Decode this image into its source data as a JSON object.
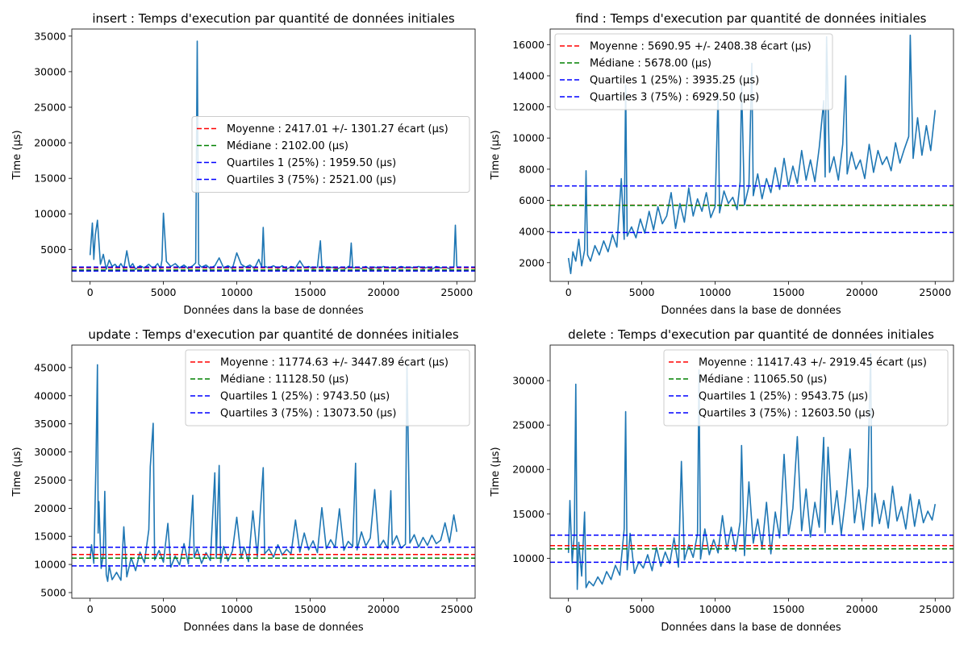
{
  "chart_data": [
    {
      "type": "line",
      "title": "insert : Temps d'execution par quantité de données initiales",
      "xlabel": "Données dans la base de données",
      "ylabel": "Time (µs)",
      "xlim": [
        -1250,
        26250
      ],
      "ylim": [
        500,
        36000
      ],
      "xticks": [
        0,
        5000,
        10000,
        15000,
        20000,
        25000
      ],
      "yticks": [
        5000,
        10000,
        15000,
        20000,
        25000,
        30000,
        35000
      ],
      "grid": false,
      "legend_position": "center-right",
      "series_color": "#1f77b4",
      "series": [
        {
          "x": [
            0,
            150,
            250,
            350,
            500,
            700,
            900,
            1100,
            1300,
            1500,
            1700,
            1900,
            2100,
            2300,
            2500,
            2700,
            2900,
            3100,
            3400,
            3700,
            4000,
            4300,
            4600,
            4800,
            4900,
            5000,
            5200,
            5500,
            5800,
            6100,
            6400,
            6700,
            7000,
            7200,
            7300,
            7400,
            7600,
            7900,
            8200,
            8500,
            8800,
            9100,
            9400,
            9700,
            10000,
            10300,
            10600,
            10900,
            11200,
            11500,
            11700,
            11800,
            11900,
            12200,
            12500,
            12800,
            13100,
            13400,
            13700,
            14000,
            14300,
            14600,
            14900,
            15200,
            15500,
            15700,
            15800,
            15900,
            16200,
            16500,
            16800,
            17100,
            17400,
            17700,
            17800,
            17900,
            18200,
            18500,
            18800,
            19100,
            19400,
            19700,
            20000,
            20300,
            20600,
            20900,
            21200,
            21500,
            21800,
            22100,
            22400,
            22700,
            23000,
            23300,
            23600,
            23900,
            24200,
            24500,
            24800,
            24900,
            25000
          ],
          "y": [
            4200,
            8700,
            3600,
            7000,
            9100,
            2900,
            4300,
            2200,
            3500,
            2600,
            2900,
            2400,
            3000,
            2300,
            4800,
            2500,
            3000,
            2200,
            2700,
            2400,
            2900,
            2300,
            3000,
            2300,
            3500,
            10100,
            3300,
            2600,
            3000,
            2400,
            2800,
            2300,
            2700,
            3100,
            34300,
            2900,
            2500,
            2800,
            2300,
            2700,
            3800,
            2400,
            2700,
            2300,
            4500,
            2900,
            2500,
            2800,
            2300,
            3600,
            2500,
            8100,
            2600,
            2400,
            2700,
            2300,
            2700,
            2200,
            2600,
            2400,
            3400,
            2400,
            2600,
            2300,
            2500,
            6200,
            2400,
            2600,
            2300,
            2500,
            2200,
            2500,
            2300,
            2700,
            5900,
            2400,
            2500,
            2300,
            2600,
            2200,
            2500,
            2300,
            2600,
            2400,
            2500,
            2300,
            2600,
            2400,
            2500,
            2400,
            2600,
            2300,
            2500,
            2200,
            2600,
            2400,
            2500,
            2300,
            2500,
            8400,
            2600
          ]
        }
      ],
      "legend": [
        {
          "label": "Moyenne : 2417.01 +/- 1301.27 écart (µs)",
          "value": 2417.01,
          "color": "#ff0000"
        },
        {
          "label": "Médiane : 2102.00 (µs)",
          "value": 2102.0,
          "color": "#008000"
        },
        {
          "label": "Quartiles 1 (25%) : 1959.50 (µs)",
          "value": 1959.5,
          "color": "#0000ff"
        },
        {
          "label": "Quartiles 3 (75%) : 2521.00 (µs)",
          "value": 2521.0,
          "color": "#0000ff"
        }
      ]
    },
    {
      "type": "line",
      "title": "find : Temps d'execution par quantité de données initiales",
      "xlabel": "Données dans la base de données",
      "ylabel": "Time (µs)",
      "xlim": [
        -1250,
        26250
      ],
      "ylim": [
        800,
        17000
      ],
      "xticks": [
        0,
        5000,
        10000,
        15000,
        20000,
        25000
      ],
      "yticks": [
        2000,
        4000,
        6000,
        8000,
        10000,
        12000,
        14000,
        16000
      ],
      "grid": false,
      "legend_position": "top-left",
      "series_color": "#1f77b4",
      "series": [
        {
          "x": [
            0,
            150,
            300,
            500,
            700,
            900,
            1100,
            1200,
            1300,
            1500,
            1800,
            2100,
            2400,
            2700,
            3000,
            3300,
            3600,
            3800,
            3900,
            4000,
            4300,
            4600,
            4900,
            5200,
            5500,
            5800,
            6100,
            6400,
            6700,
            7000,
            7300,
            7600,
            7900,
            8200,
            8500,
            8800,
            9100,
            9400,
            9700,
            10000,
            10200,
            10300,
            10600,
            10900,
            11200,
            11500,
            11700,
            11800,
            12000,
            12300,
            12500,
            12600,
            12900,
            13200,
            13500,
            13800,
            14100,
            14400,
            14700,
            15000,
            15300,
            15600,
            15900,
            16200,
            16500,
            16800,
            17100,
            17400,
            17500,
            17600,
            17800,
            18100,
            18400,
            18700,
            18900,
            19000,
            19300,
            19600,
            19900,
            20200,
            20500,
            20800,
            21100,
            21400,
            21700,
            22000,
            22300,
            22600,
            22900,
            23200,
            23300,
            23500,
            23800,
            24100,
            24400,
            24700,
            25000
          ],
          "y": [
            2300,
            1300,
            2700,
            2100,
            3500,
            1800,
            2800,
            7900,
            2500,
            2100,
            3100,
            2500,
            3400,
            2700,
            3800,
            3000,
            7400,
            3500,
            13400,
            3700,
            4300,
            3600,
            4800,
            3900,
            5300,
            4100,
            5600,
            4500,
            5000,
            6500,
            4200,
            5800,
            4600,
            6800,
            5000,
            6100,
            5300,
            6500,
            4900,
            5600,
            12900,
            5200,
            6600,
            5800,
            6200,
            5400,
            7200,
            13500,
            5700,
            6900,
            14800,
            6300,
            7700,
            6100,
            7400,
            6500,
            8100,
            6700,
            8700,
            6900,
            8200,
            7100,
            9200,
            7300,
            8600,
            7200,
            9400,
            12400,
            7500,
            16500,
            7800,
            8800,
            7300,
            9600,
            14000,
            7700,
            9100,
            8000,
            8600,
            7400,
            9600,
            7800,
            9200,
            8300,
            8800,
            7900,
            9700,
            8400,
            9300,
            10100,
            16600,
            8700,
            11300,
            8900,
            10800,
            9200,
            11800
          ]
        }
      ],
      "legend": [
        {
          "label": "Moyenne : 5690.95 +/- 2408.38 écart (µs)",
          "value": 5690.95,
          "color": "#ff0000"
        },
        {
          "label": "Médiane : 5678.00 (µs)",
          "value": 5678.0,
          "color": "#008000"
        },
        {
          "label": "Quartiles 1 (25%) : 3935.25 (µs)",
          "value": 3935.25,
          "color": "#0000ff"
        },
        {
          "label": "Quartiles 3 (75%) : 6929.50 (µs)",
          "value": 6929.5,
          "color": "#0000ff"
        }
      ]
    },
    {
      "type": "line",
      "title": "update : Temps d'execution par quantité de données initiales",
      "xlabel": "Données dans la base de données",
      "ylabel": "Time (µs)",
      "xlim": [
        -1250,
        26250
      ],
      "ylim": [
        4000,
        49000
      ],
      "xticks": [
        0,
        5000,
        10000,
        15000,
        20000,
        25000
      ],
      "yticks": [
        5000,
        10000,
        15000,
        20000,
        25000,
        30000,
        35000,
        40000,
        45000
      ],
      "grid": false,
      "legend_position": "top-right",
      "series_color": "#1f77b4",
      "series": [
        {
          "x": [
            0,
            100,
            250,
            400,
            500,
            550,
            600,
            750,
            900,
            1000,
            1100,
            1200,
            1300,
            1500,
            1800,
            2100,
            2300,
            2500,
            2800,
            3100,
            3400,
            3700,
            4000,
            4100,
            4300,
            4400,
            4700,
            5000,
            5300,
            5500,
            5800,
            6100,
            6400,
            6700,
            7000,
            7100,
            7300,
            7600,
            7900,
            8200,
            8500,
            8600,
            8800,
            8900,
            9100,
            9400,
            9700,
            10000,
            10300,
            10500,
            10800,
            11100,
            11400,
            11800,
            11900,
            12200,
            12500,
            12800,
            13100,
            13400,
            13700,
            14000,
            14300,
            14600,
            14900,
            15200,
            15500,
            15800,
            16100,
            16400,
            16700,
            17000,
            17300,
            17600,
            17900,
            18100,
            18200,
            18500,
            18800,
            19100,
            19400,
            19700,
            20000,
            20300,
            20500,
            20600,
            20900,
            21200,
            21500,
            21600,
            21800,
            22100,
            22400,
            22700,
            23000,
            23300,
            23600,
            23900,
            24200,
            24500,
            24800,
            25000
          ],
          "y": [
            11000,
            13500,
            10200,
            28300,
            45500,
            15600,
            21200,
            9300,
            11800,
            23000,
            8200,
            7000,
            9800,
            7300,
            8600,
            7200,
            16700,
            7800,
            11200,
            8900,
            12200,
            10300,
            16200,
            27400,
            35100,
            10800,
            12500,
            10400,
            17300,
            9500,
            11500,
            9900,
            13700,
            10100,
            22300,
            11200,
            12800,
            10200,
            12100,
            10700,
            26300,
            11100,
            27600,
            10300,
            13200,
            10600,
            12400,
            18400,
            11200,
            13100,
            10500,
            19500,
            11400,
            27200,
            11900,
            12800,
            11300,
            13500,
            11700,
            12700,
            11900,
            17900,
            12200,
            15600,
            12600,
            14200,
            12100,
            20100,
            12800,
            14400,
            13000,
            19900,
            12500,
            14100,
            13200,
            28000,
            12600,
            15800,
            13300,
            14700,
            23300,
            13000,
            14300,
            12800,
            23100,
            13500,
            15100,
            12900,
            13600,
            45500,
            13800,
            15300,
            13100,
            14800,
            13400,
            15200,
            13700,
            14300,
            17400,
            13900,
            18800,
            15800
          ]
        }
      ],
      "legend": [
        {
          "label": "Moyenne : 11774.63 +/- 3447.89 écart (µs)",
          "value": 11774.63,
          "color": "#ff0000"
        },
        {
          "label": "Médiane : 11128.50 (µs)",
          "value": 11128.5,
          "color": "#008000"
        },
        {
          "label": "Quartiles 1 (25%) : 9743.50 (µs)",
          "value": 9743.5,
          "color": "#0000ff"
        },
        {
          "label": "Quartiles 3 (75%) : 13073.50 (µs)",
          "value": 13073.5,
          "color": "#0000ff"
        }
      ]
    },
    {
      "type": "line",
      "title": "delete : Temps d'execution par quantité de données initiales",
      "xlabel": "Données dans la base de données",
      "ylabel": "Time (µs)",
      "xlim": [
        -1250,
        26250
      ],
      "ylim": [
        5500,
        34000
      ],
      "xticks": [
        0,
        5000,
        10000,
        15000,
        20000,
        25000
      ],
      "yticks": [
        10000,
        15000,
        20000,
        25000,
        30000
      ],
      "grid": false,
      "legend_position": "top-right",
      "series_color": "#1f77b4",
      "series": [
        {
          "x": [
            0,
            100,
            250,
            400,
            500,
            600,
            700,
            900,
            1100,
            1200,
            1400,
            1700,
            2000,
            2300,
            2600,
            2900,
            3200,
            3500,
            3800,
            3900,
            4000,
            4200,
            4500,
            4800,
            5100,
            5400,
            5700,
            6000,
            6300,
            6600,
            6900,
            7200,
            7500,
            7700,
            7900,
            8200,
            8500,
            8800,
            8900,
            9000,
            9300,
            9600,
            9900,
            10200,
            10500,
            10800,
            11100,
            11400,
            11700,
            11800,
            12000,
            12300,
            12600,
            12900,
            13200,
            13500,
            13800,
            14100,
            14400,
            14700,
            15000,
            15300,
            15600,
            15900,
            16200,
            16500,
            16800,
            17100,
            17400,
            17500,
            17700,
            18000,
            18300,
            18600,
            18900,
            19200,
            19500,
            19800,
            20100,
            20400,
            20600,
            20700,
            20900,
            21200,
            21500,
            21800,
            22100,
            22400,
            22700,
            23000,
            23300,
            23600,
            23900,
            24200,
            24500,
            24800,
            25000
          ],
          "y": [
            10600,
            16500,
            9500,
            12800,
            29600,
            6500,
            11800,
            8000,
            15200,
            6700,
            7400,
            6900,
            7900,
            7100,
            8500,
            7600,
            9200,
            8100,
            13300,
            26500,
            8700,
            12800,
            8300,
            9600,
            8900,
            10400,
            8600,
            11200,
            9100,
            10700,
            9400,
            12300,
            9000,
            20900,
            9800,
            11500,
            10100,
            12800,
            31200,
            9900,
            13300,
            10400,
            12100,
            10600,
            14800,
            11000,
            13500,
            10800,
            14100,
            22700,
            10300,
            18600,
            11700,
            14400,
            11200,
            16300,
            10500,
            15200,
            12300,
            21700,
            12700,
            15600,
            23700,
            13100,
            17800,
            12400,
            16300,
            13500,
            23600,
            12900,
            22500,
            13800,
            17600,
            12700,
            16900,
            22300,
            14000,
            17700,
            13200,
            18100,
            33000,
            13600,
            17300,
            13900,
            16500,
            13400,
            18100,
            14200,
            15800,
            13300,
            17200,
            13600,
            16600,
            14000,
            15300,
            14300,
            16100
          ]
        }
      ],
      "legend": [
        {
          "label": "Moyenne : 11417.43 +/- 2919.45 écart (µs)",
          "value": 11417.43,
          "color": "#ff0000"
        },
        {
          "label": "Médiane : 11065.50 (µs)",
          "value": 11065.5,
          "color": "#008000"
        },
        {
          "label": "Quartiles 1 (25%) : 9543.75 (µs)",
          "value": 9543.75,
          "color": "#0000ff"
        },
        {
          "label": "Quartiles 3 (75%) : 12603.50 (µs)",
          "value": 12603.5,
          "color": "#0000ff"
        }
      ]
    }
  ]
}
